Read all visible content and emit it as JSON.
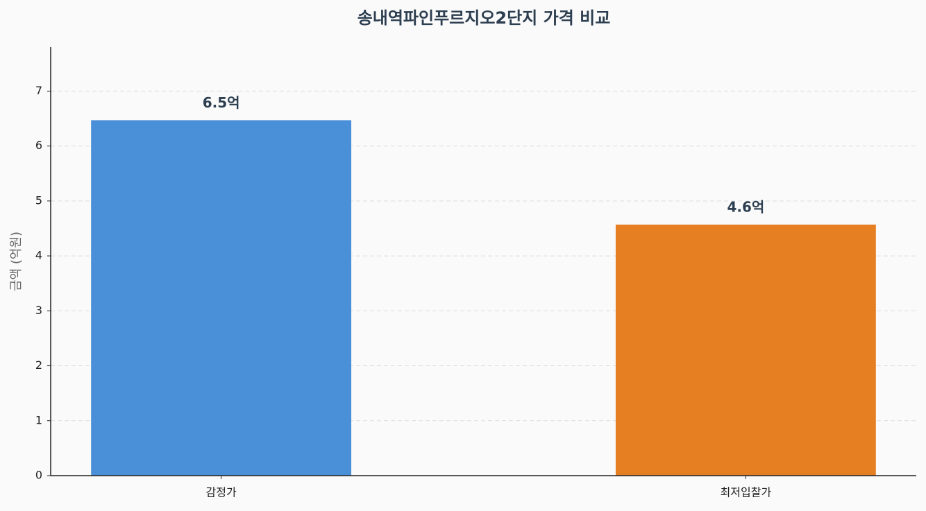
{
  "chart_data": {
    "type": "bar",
    "title": "송내역파인푸르지오2단지 가격 비교",
    "y_label": "금액 (억원)",
    "categories": [
      "감정가",
      "최저입찰가"
    ],
    "values": [
      6.47,
      4.57
    ],
    "value_labels": [
      "6.5억",
      "4.6억"
    ],
    "colors": [
      "#4a90d9",
      "#e67e22"
    ],
    "ylim": [
      0,
      7.8
    ],
    "yticks": [
      0,
      1,
      2,
      3,
      4,
      5,
      6,
      7
    ],
    "grid": true
  }
}
